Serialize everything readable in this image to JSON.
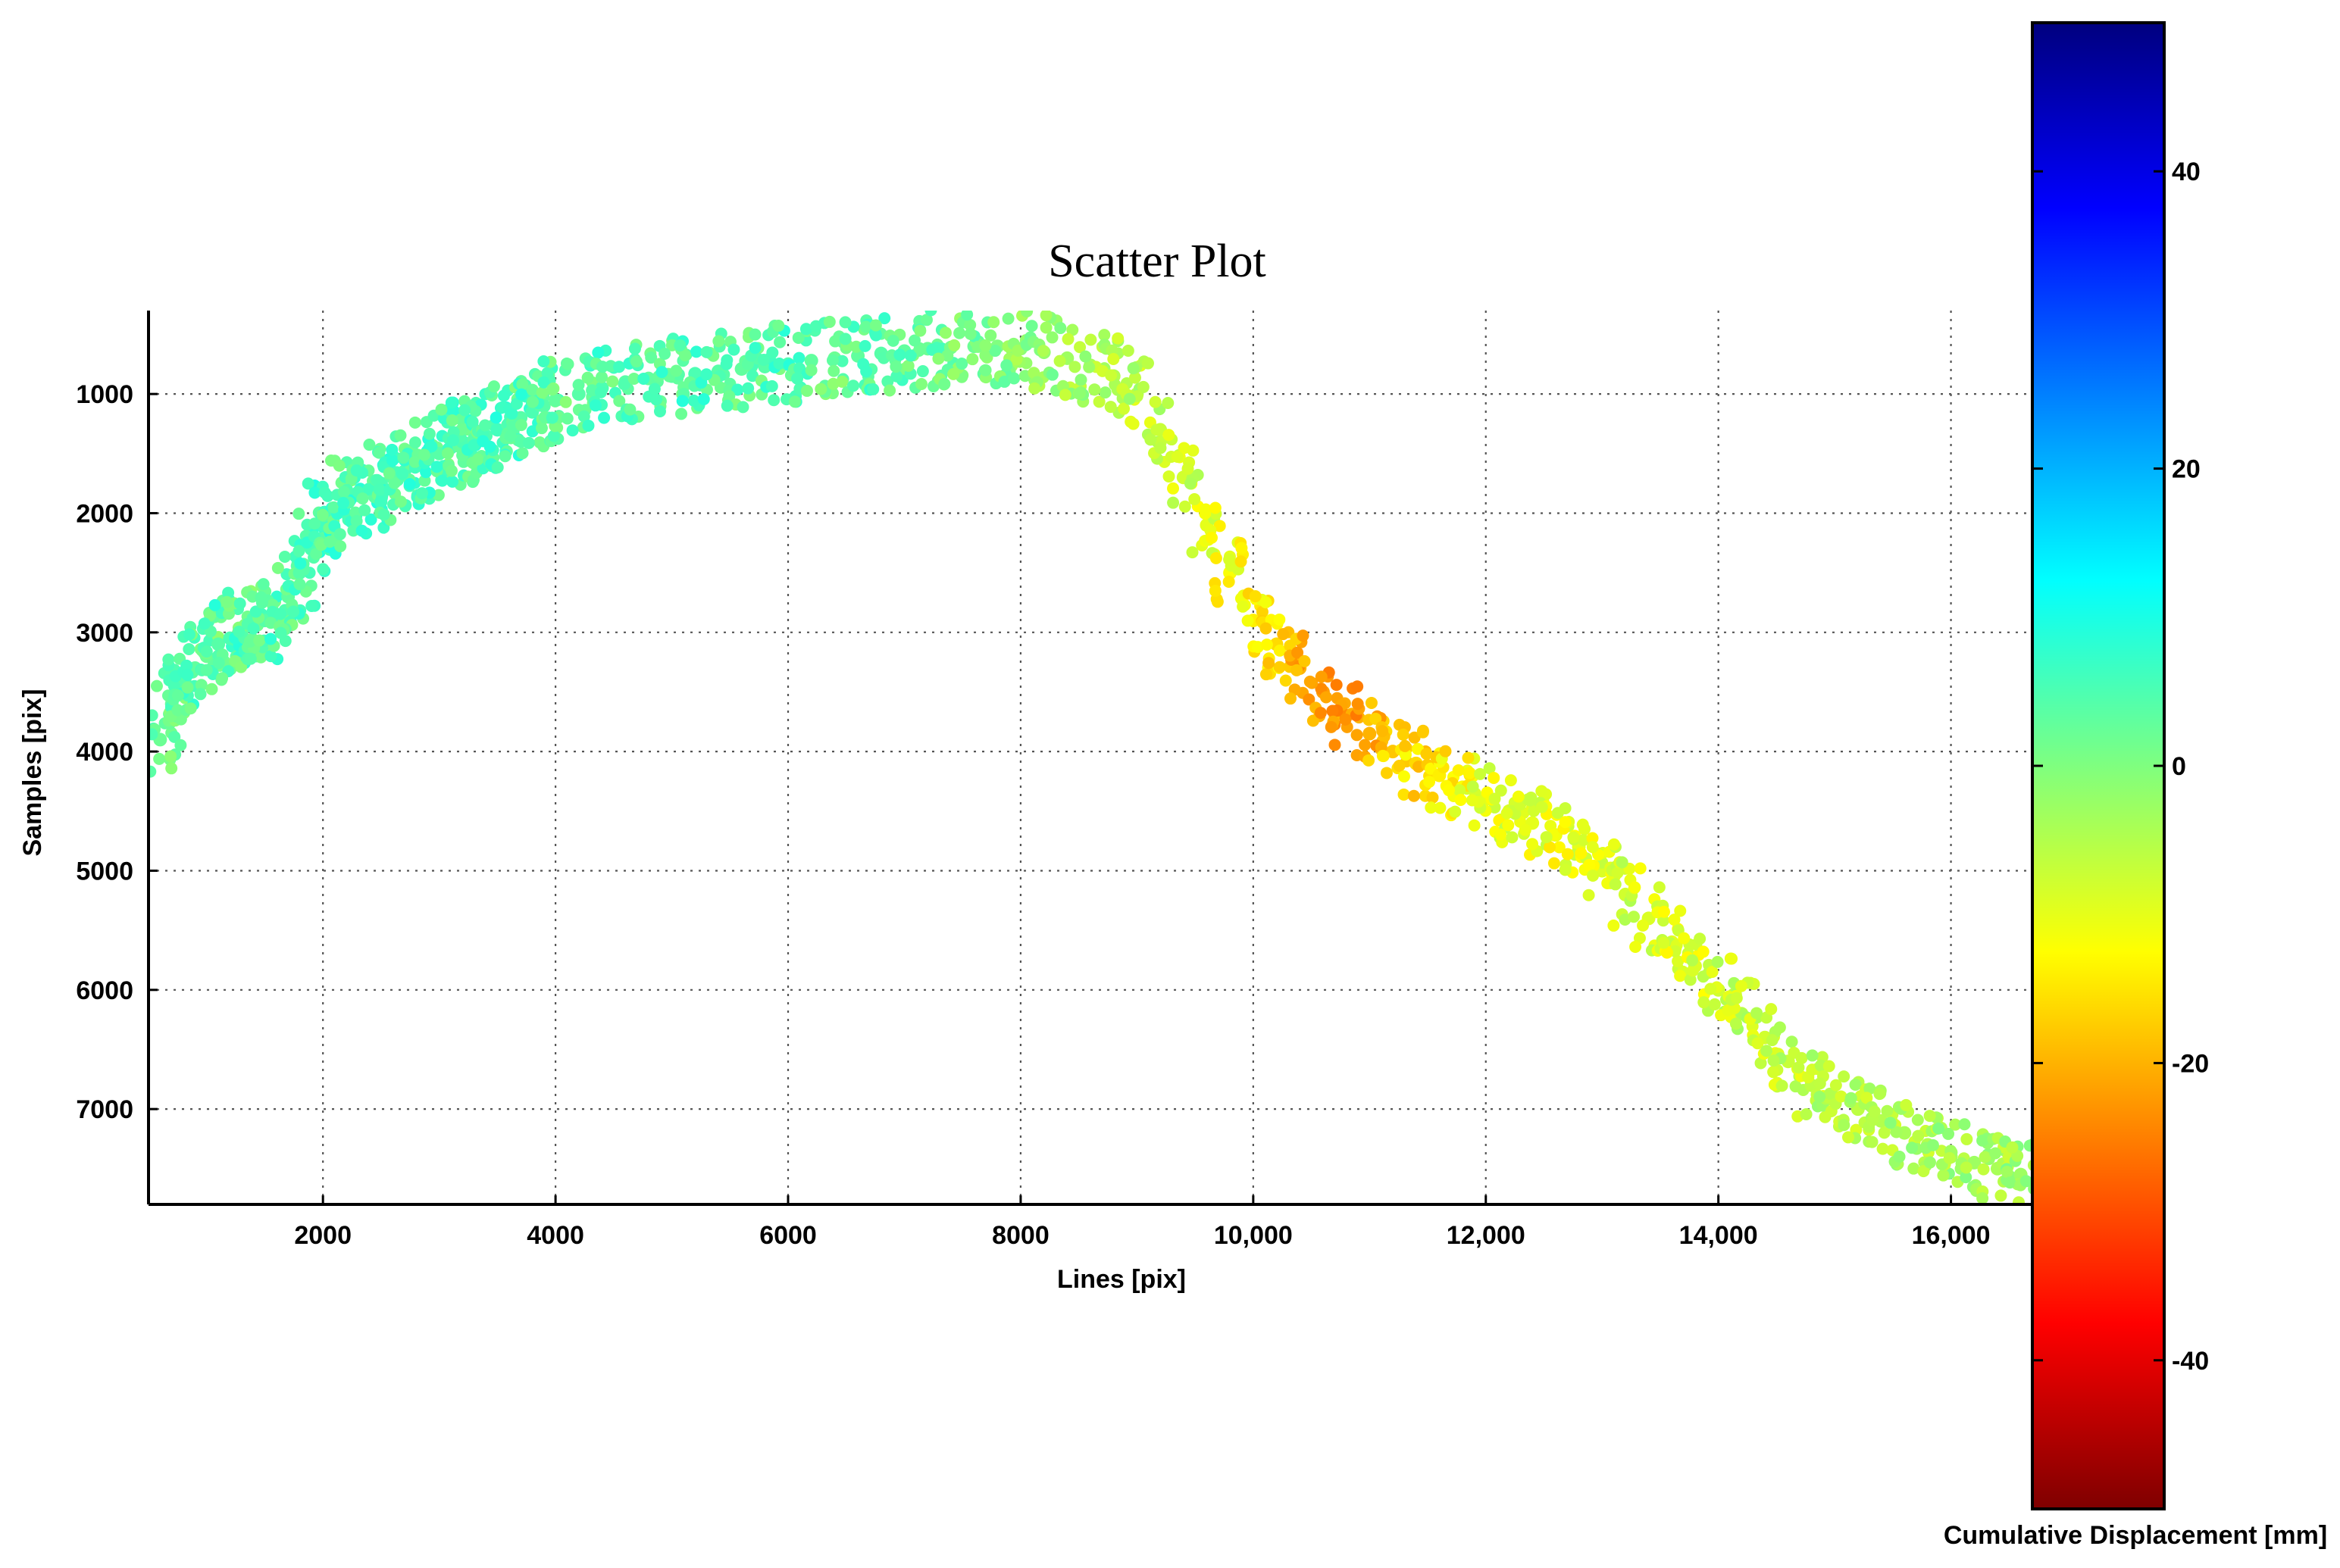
{
  "chart_data": {
    "type": "scatter",
    "title": "Scatter Plot",
    "xlabel": "Lines [pix]",
    "ylabel": "Samples [pix]",
    "xlim": [
      500,
      16700
    ],
    "ylim": [
      300,
      7800
    ],
    "y_reversed": true,
    "grid": true,
    "x_ticks": [
      2000,
      4000,
      6000,
      8000,
      10000,
      12000,
      14000,
      16000
    ],
    "x_tick_labels": [
      "2000",
      "4000",
      "6000",
      "8000",
      "10,000",
      "12,000",
      "14,000",
      "16,000"
    ],
    "y_ticks": [
      1000,
      2000,
      3000,
      4000,
      5000,
      6000,
      7000
    ],
    "y_tick_labels": [
      "1000",
      "2000",
      "3000",
      "4000",
      "5000",
      "6000",
      "7000"
    ],
    "colorbar": {
      "label": "Cumulative Displacement [mm]",
      "colormap": "jet",
      "range": [
        -50,
        50
      ],
      "ticks": [
        40,
        20,
        0,
        -20,
        -40
      ],
      "tick_labels": [
        "40",
        "20",
        "0",
        "-20",
        "-40"
      ],
      "placement": "right"
    },
    "point_clusters_note_free": true,
    "series": [
      {
        "x": [
          600,
          700,
          800,
          900,
          1000,
          1100,
          1200,
          1300,
          1400,
          1500,
          1600,
          1700,
          1800,
          1900,
          2000,
          2100,
          2200,
          2300,
          2400,
          2500,
          2600,
          2700,
          2800,
          2900,
          3000,
          3100,
          3200,
          3300,
          3400,
          3500,
          3600,
          3700,
          3800,
          3900,
          4000,
          4200,
          4400,
          4600,
          4800,
          5000,
          5200,
          5400,
          5600,
          5800,
          6000,
          6200,
          6400,
          6600,
          6800,
          7000,
          7200,
          7400,
          7600,
          7800,
          8000,
          8200,
          8400,
          8600,
          8800,
          9000,
          9200,
          9400,
          9600,
          9800,
          10000,
          10200,
          10400,
          10600,
          10800,
          11000,
          11200,
          11400,
          11600,
          11800,
          12000,
          12200,
          12400,
          12600,
          12800,
          13000,
          13200,
          13400,
          13600,
          13800,
          14000,
          14200,
          14400,
          14600,
          14800,
          15000,
          15200,
          15400,
          15600,
          15800,
          16000,
          16200,
          16400,
          16600
        ],
        "y": [
          3900,
          3600,
          3400,
          3300,
          3200,
          3100,
          3050,
          3000,
          2950,
          2900,
          2850,
          2700,
          2500,
          2300,
          2100,
          2000,
          1900,
          1850,
          1800,
          1750,
          1700,
          1650,
          1600,
          1550,
          1500,
          1450,
          1400,
          1380,
          1350,
          1300,
          1250,
          1200,
          1150,
          1100,
          1050,
          1000,
          950,
          900,
          870,
          850,
          830,
          810,
          790,
          770,
          750,
          720,
          700,
          680,
          660,
          640,
          620,
          610,
          600,
          600,
          620,
          650,
          700,
          760,
          850,
          1000,
          1300,
          1700,
          2100,
          2500,
          2900,
          3100,
          3300,
          3500,
          3700,
          3850,
          4000,
          4100,
          4200,
          4300,
          4400,
          4500,
          4600,
          4700,
          4800,
          5000,
          5200,
          5400,
          5600,
          5800,
          6000,
          6200,
          6400,
          6600,
          6800,
          6900,
          7000,
          7100,
          7200,
          7300,
          7400,
          7450,
          7500,
          7550
        ],
        "displacement": [
          2,
          3,
          4,
          3,
          2,
          4,
          5,
          3,
          2,
          4,
          5,
          3,
          4,
          5,
          6,
          5,
          4,
          5,
          6,
          5,
          4,
          5,
          6,
          5,
          4,
          5,
          5,
          4,
          5,
          6,
          5,
          4,
          5,
          4,
          3,
          4,
          5,
          4,
          3,
          4,
          5,
          4,
          3,
          4,
          5,
          3,
          2,
          3,
          4,
          3,
          2,
          1,
          2,
          0,
          -1,
          -2,
          -3,
          -4,
          -5,
          -6,
          -7,
          -8,
          -10,
          -12,
          -14,
          -16,
          -20,
          -22,
          -24,
          -20,
          -18,
          -16,
          -14,
          -12,
          -10,
          -9,
          -10,
          -11,
          -10,
          -9,
          -8,
          -9,
          -10,
          -9,
          -8,
          -7,
          -8,
          -7,
          -6,
          -5,
          -6,
          -5,
          -4,
          -5,
          -4,
          -3,
          -4,
          -3
        ]
      }
    ]
  }
}
